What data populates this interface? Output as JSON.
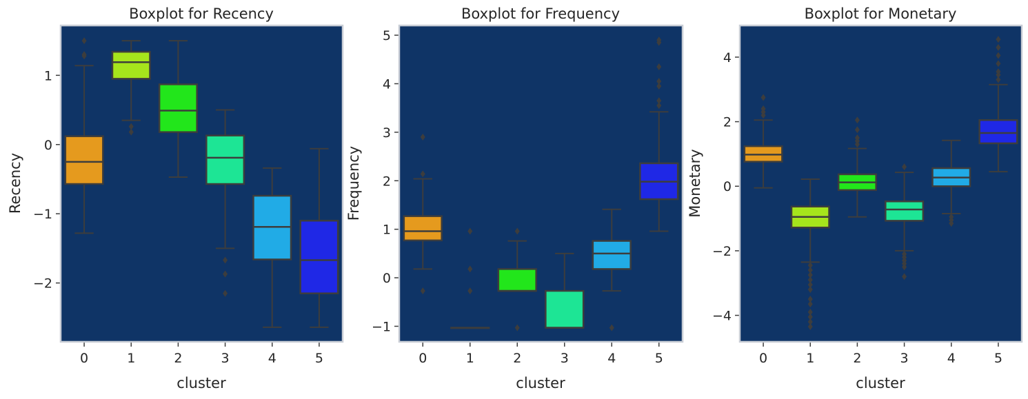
{
  "colors": {
    "plot_background": "#0f3466",
    "frame": "#c9ced6",
    "whisker": "#3d3d3d",
    "boxes": [
      "#e59a1e",
      "#a6e51c",
      "#22e61b",
      "#1de595",
      "#21abe6",
      "#1f28e6"
    ]
  },
  "chart_data": [
    {
      "type": "boxplot",
      "title": "Boxplot for Recency",
      "xlabel": "cluster",
      "ylabel": "Recency",
      "categories": [
        "0",
        "1",
        "2",
        "3",
        "4",
        "5"
      ],
      "ylim": [
        -2.85,
        1.72
      ],
      "yticks": [
        -2,
        -1,
        0,
        1
      ],
      "boxes": [
        {
          "cluster": "0",
          "whislo": -1.28,
          "q1": -0.57,
          "med": -0.25,
          "q3": 0.12,
          "whishi": 1.14,
          "fliers": [
            1.28,
            1.3,
            1.5
          ]
        },
        {
          "cluster": "1",
          "whislo": 0.35,
          "q1": 0.95,
          "med": 1.19,
          "q3": 1.34,
          "whishi": 1.5,
          "fliers": [
            0.18,
            0.26
          ]
        },
        {
          "cluster": "2",
          "whislo": -0.47,
          "q1": 0.18,
          "med": 0.49,
          "q3": 0.87,
          "whishi": 1.5,
          "fliers": []
        },
        {
          "cluster": "3",
          "whislo": -1.5,
          "q1": -0.57,
          "med": -0.19,
          "q3": 0.13,
          "whishi": 0.5,
          "fliers": [
            -1.67,
            -1.87,
            -2.15
          ]
        },
        {
          "cluster": "4",
          "whislo": -2.64,
          "q1": -1.66,
          "med": -1.19,
          "q3": -0.74,
          "whishi": -0.34,
          "fliers": []
        },
        {
          "cluster": "5",
          "whislo": -2.64,
          "q1": -2.15,
          "med": -1.67,
          "q3": -1.1,
          "whishi": -0.06,
          "fliers": []
        }
      ]
    },
    {
      "type": "boxplot",
      "title": "Boxplot for Frequency",
      "xlabel": "cluster",
      "ylabel": "Frequency",
      "categories": [
        "0",
        "1",
        "2",
        "3",
        "4",
        "5"
      ],
      "ylim": [
        -1.32,
        5.2
      ],
      "yticks": [
        -1,
        0,
        1,
        2,
        3,
        4,
        5
      ],
      "boxes": [
        {
          "cluster": "0",
          "whislo": 0.18,
          "q1": 0.77,
          "med": 0.96,
          "q3": 1.27,
          "whishi": 2.04,
          "fliers": [
            2.14,
            2.9,
            -0.27
          ]
        },
        {
          "cluster": "1",
          "whislo": -1.03,
          "q1": -1.03,
          "med": -1.03,
          "q3": -1.03,
          "whishi": -1.03,
          "fliers": [
            0.96,
            0.18,
            -0.27
          ]
        },
        {
          "cluster": "2",
          "whislo": -0.27,
          "q1": -0.27,
          "med": -0.27,
          "q3": 0.18,
          "whishi": 0.76,
          "fliers": [
            0.96,
            -1.03
          ]
        },
        {
          "cluster": "3",
          "whislo": -1.03,
          "q1": -1.03,
          "med": -1.03,
          "q3": -0.27,
          "whishi": 0.5,
          "fliers": []
        },
        {
          "cluster": "4",
          "whislo": -0.27,
          "q1": 0.18,
          "med": 0.5,
          "q3": 0.76,
          "whishi": 1.41,
          "fliers": [
            -1.03
          ]
        },
        {
          "cluster": "5",
          "whislo": 0.96,
          "q1": 1.62,
          "med": 1.98,
          "q3": 2.36,
          "whishi": 3.42,
          "fliers": [
            3.55,
            3.65,
            3.95,
            4.05,
            4.35,
            4.85,
            4.9
          ]
        }
      ]
    },
    {
      "type": "boxplot",
      "title": "Boxplot for Monetary",
      "xlabel": "cluster",
      "ylabel": "Monetary",
      "categories": [
        "0",
        "1",
        "2",
        "3",
        "4",
        "5"
      ],
      "ylim": [
        -4.82,
        4.98
      ],
      "yticks": [
        -4,
        -2,
        0,
        2,
        4
      ],
      "boxes": [
        {
          "cluster": "0",
          "whislo": -0.05,
          "q1": 0.76,
          "med": 0.98,
          "q3": 1.24,
          "whishi": 2.05,
          "fliers": [
            2.2,
            2.3,
            2.4,
            2.75
          ]
        },
        {
          "cluster": "1",
          "whislo": -2.35,
          "q1": -1.28,
          "med": -0.95,
          "q3": -0.63,
          "whishi": 0.22,
          "fliers": [
            -2.45,
            -2.6,
            -2.75,
            -2.9,
            -3.05,
            -3.2,
            -3.5,
            -3.65,
            -3.9,
            -4.05,
            -4.2,
            -4.35
          ]
        },
        {
          "cluster": "2",
          "whislo": -0.95,
          "q1": -0.12,
          "med": 0.12,
          "q3": 0.37,
          "whishi": 1.17,
          "fliers": [
            1.3,
            1.4,
            1.5,
            1.75,
            2.05
          ]
        },
        {
          "cluster": "3",
          "whislo": -2.0,
          "q1": -1.07,
          "med": -0.72,
          "q3": -0.47,
          "whishi": 0.43,
          "fliers": [
            -2.1,
            -2.2,
            -2.3,
            -2.4,
            -2.5,
            -2.8,
            0.6
          ]
        },
        {
          "cluster": "4",
          "whislo": -0.85,
          "q1": 0.0,
          "med": 0.27,
          "q3": 0.56,
          "whishi": 1.42,
          "fliers": [
            -0.95,
            -1.05,
            -1.15
          ]
        },
        {
          "cluster": "5",
          "whislo": 0.45,
          "q1": 1.33,
          "med": 1.65,
          "q3": 2.05,
          "whishi": 3.15,
          "fliers": [
            3.3,
            3.45,
            3.55,
            3.8,
            4.05,
            4.3,
            4.55
          ]
        }
      ]
    }
  ]
}
